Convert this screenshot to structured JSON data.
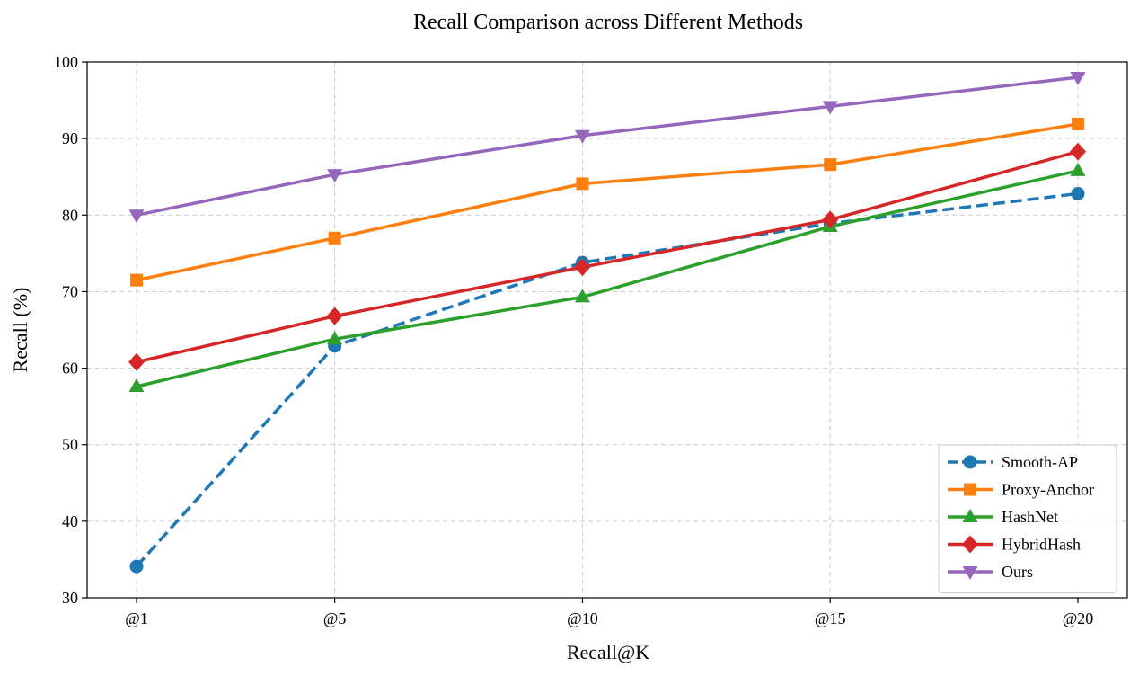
{
  "chart_data": {
    "type": "line",
    "title": "Recall Comparison across Different Methods",
    "xlabel": "Recall@K",
    "ylabel": "Recall (%)",
    "categories": [
      "@1",
      "@5",
      "@10",
      "@15",
      "@20"
    ],
    "x": [
      1,
      5,
      10,
      15,
      20
    ],
    "ylim": [
      30,
      100
    ],
    "yticks": [
      30,
      40,
      50,
      60,
      70,
      80,
      90,
      100
    ],
    "grid": true,
    "legend_position": "lower-right",
    "series": [
      {
        "name": "Smooth-AP",
        "values": [
          34.1,
          62.9,
          73.8,
          78.9,
          82.8
        ],
        "color": "#1f77b4",
        "marker": "circle",
        "linestyle": "dashed"
      },
      {
        "name": "Proxy-Anchor",
        "values": [
          71.5,
          77.0,
          84.1,
          86.6,
          91.9
        ],
        "color": "#ff7f0e",
        "marker": "square",
        "linestyle": "solid"
      },
      {
        "name": "HashNet",
        "values": [
          57.6,
          63.8,
          69.3,
          78.5,
          85.8
        ],
        "color": "#2ca02c",
        "marker": "triangle-up",
        "linestyle": "solid"
      },
      {
        "name": "HybridHash",
        "values": [
          60.8,
          66.8,
          73.2,
          79.4,
          88.3
        ],
        "color": "#d62728",
        "marker": "diamond",
        "linestyle": "solid"
      },
      {
        "name": "Ours",
        "values": [
          80.0,
          85.3,
          90.4,
          94.2,
          98.0
        ],
        "color": "#9467bd",
        "marker": "triangle-down",
        "linestyle": "solid"
      }
    ]
  }
}
